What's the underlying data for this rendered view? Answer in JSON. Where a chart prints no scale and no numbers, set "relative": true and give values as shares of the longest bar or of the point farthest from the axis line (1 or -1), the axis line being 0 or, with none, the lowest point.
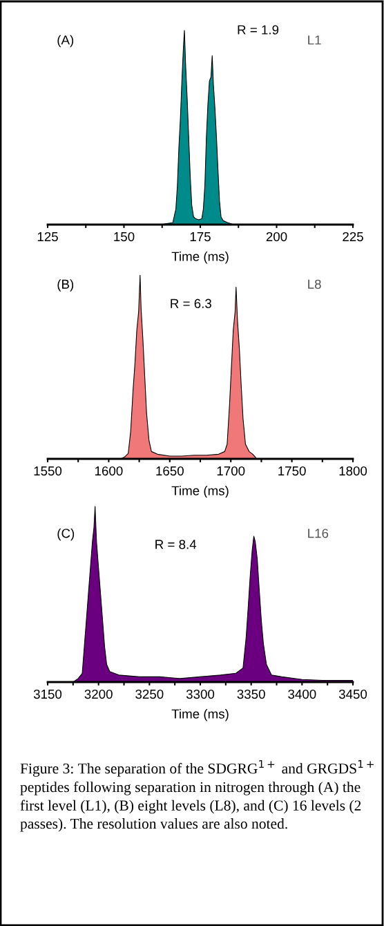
{
  "chart_data": [
    {
      "type": "area",
      "relative": true,
      "xlabel": "Time (ms)",
      "xlim": [
        125,
        225
      ],
      "xticks": [
        125,
        {
          "value": 137.5,
          "label": null
        },
        150,
        {
          "value": 162.5,
          "label": null
        },
        175,
        {
          "value": 187.5,
          "label": null
        },
        200,
        {
          "value": 212.5,
          "label": null
        },
        225
      ],
      "annotations": [
        "(A)",
        "R = 1.9",
        "L1"
      ],
      "series": [
        {
          "color": "#008b8b",
          "x": [
            162,
            164,
            166,
            167,
            167.5,
            168,
            168.5,
            169,
            169.5,
            169.8,
            170.2,
            170.7,
            171.2,
            171.7,
            172.2,
            172.8,
            173.5,
            174.5,
            175.5,
            176,
            176.5,
            177,
            177.5,
            178,
            178.5,
            178.9,
            179.3,
            179.8,
            180.3,
            180.8,
            181.3,
            181.8,
            182.5,
            184,
            186
          ],
          "values": [
            0,
            0.005,
            0.01,
            0.08,
            0.2,
            0.4,
            0.55,
            0.75,
            0.92,
            1.0,
            0.82,
            0.65,
            0.45,
            0.25,
            0.1,
            0.04,
            0.03,
            0.025,
            0.03,
            0.08,
            0.2,
            0.45,
            0.62,
            0.74,
            0.76,
            0.87,
            0.72,
            0.6,
            0.45,
            0.28,
            0.12,
            0.04,
            0.02,
            0.01,
            0
          ]
        }
      ]
    },
    {
      "type": "area",
      "relative": true,
      "xlabel": "Time (ms)",
      "xlim": [
        1550,
        1800
      ],
      "xticks": [
        1550,
        {
          "value": 1575,
          "label": null
        },
        1600,
        {
          "value": 1625,
          "label": null
        },
        1650,
        {
          "value": 1675,
          "label": null
        },
        1700,
        {
          "value": 1725,
          "label": null
        },
        1750,
        {
          "value": 1775,
          "label": null
        },
        1800
      ],
      "annotations": [
        "(B)",
        "R = 6.3",
        "L8"
      ],
      "series": [
        {
          "color": "#f07878",
          "x": [
            1610,
            1613,
            1616,
            1618,
            1620,
            1621.5,
            1623,
            1624.5,
            1625.7,
            1626.5,
            1628,
            1629.5,
            1631,
            1633,
            1635,
            1640,
            1650,
            1660,
            1670,
            1680,
            1690,
            1695,
            1697,
            1699,
            1700.5,
            1702,
            1703.5,
            1704.3,
            1705.5,
            1707,
            1708.5,
            1710,
            1712,
            1715,
            1718,
            1720,
            1721
          ],
          "values": [
            0,
            0.01,
            0.03,
            0.15,
            0.38,
            0.52,
            0.7,
            0.8,
            1.0,
            0.82,
            0.65,
            0.45,
            0.25,
            0.1,
            0.04,
            0.025,
            0.015,
            0.015,
            0.02,
            0.02,
            0.025,
            0.04,
            0.08,
            0.3,
            0.5,
            0.7,
            0.8,
            0.935,
            0.75,
            0.6,
            0.4,
            0.22,
            0.08,
            0.04,
            0.025,
            0.01,
            0
          ]
        }
      ]
    },
    {
      "type": "area",
      "relative": true,
      "xlabel": "Time (ms)",
      "xlim": [
        3150,
        3450
      ],
      "xticks": [
        3150,
        {
          "value": 3175,
          "label": null
        },
        3200,
        {
          "value": 3225,
          "label": null
        },
        3250,
        {
          "value": 3275,
          "label": null
        },
        3300,
        {
          "value": 3325,
          "label": null
        },
        3350,
        {
          "value": 3375,
          "label": null
        },
        3400,
        {
          "value": 3425,
          "label": null
        },
        3450
      ],
      "annotations": [
        "(C)",
        "R = 8.4",
        "L16",
        "Figure 3: The separation of the SDGRG$^{1+}$ and GRGDS$^{1+}$ peptides following separation in nitrogen through (A) the first level (L1), (B) eight levels (L8), and (C) 16 levels (2 passes). The resolution values are also noted."
      ],
      "series": [
        {
          "color": "#6a0080",
          "x": [
            3175,
            3180,
            3184,
            3186,
            3188,
            3190,
            3192,
            3194,
            3195.5,
            3196.6,
            3198,
            3200,
            3202,
            3204,
            3206,
            3208,
            3211,
            3220,
            3240,
            3260,
            3280,
            3300,
            3320,
            3335,
            3342,
            3345,
            3347,
            3349,
            3351,
            3352.6,
            3354,
            3356,
            3358,
            3360,
            3362,
            3365,
            3370,
            3380,
            3400,
            3420,
            3450
          ],
          "values": [
            0,
            0.02,
            0.05,
            0.2,
            0.35,
            0.5,
            0.65,
            0.8,
            0.88,
            1.0,
            0.8,
            0.65,
            0.5,
            0.35,
            0.2,
            0.1,
            0.06,
            0.04,
            0.03,
            0.03,
            0.02,
            0.03,
            0.04,
            0.05,
            0.08,
            0.25,
            0.42,
            0.6,
            0.75,
            0.83,
            0.8,
            0.7,
            0.52,
            0.35,
            0.22,
            0.1,
            0.04,
            0.03,
            0.015,
            0.01,
            0.01
          ]
        }
      ]
    }
  ]
}
